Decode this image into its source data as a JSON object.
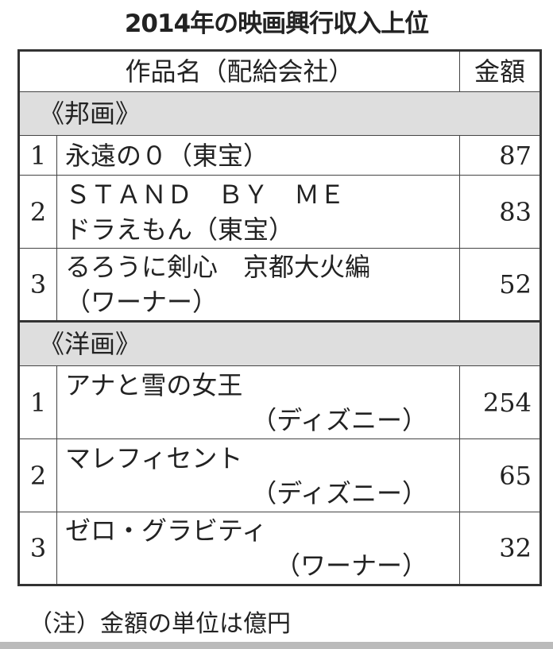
{
  "title": "2014年の映画興行収入上位",
  "header": {
    "work": "作品名（配給会社）",
    "amount": "金額"
  },
  "sections": [
    {
      "label": "《邦画》",
      "rows": [
        {
          "rank": "1",
          "line1": "永遠の０（東宝）",
          "line2": "",
          "amount": "87"
        },
        {
          "rank": "2",
          "line1": "ＳＴＡＮＤ　ＢＹ　ＭＥ",
          "line2": "ドラえもん（東宝）",
          "amount": "83"
        },
        {
          "rank": "3",
          "line1": "るろうに剣心　京都大火編",
          "line2": "（ワーナー）",
          "amount": "52"
        }
      ]
    },
    {
      "label": "《洋画》",
      "rows": [
        {
          "rank": "1",
          "line1": "アナと雪の女王",
          "line2": "（ディズニー）",
          "amount": "254"
        },
        {
          "rank": "2",
          "line1": "マレフィセント",
          "line2": "（ディズニー）",
          "amount": "65"
        },
        {
          "rank": "3",
          "line1": "ゼロ・グラビティ",
          "line2": "（ワーナー）",
          "amount": "32"
        }
      ]
    }
  ],
  "note": "（注）金額の単位は億円"
}
